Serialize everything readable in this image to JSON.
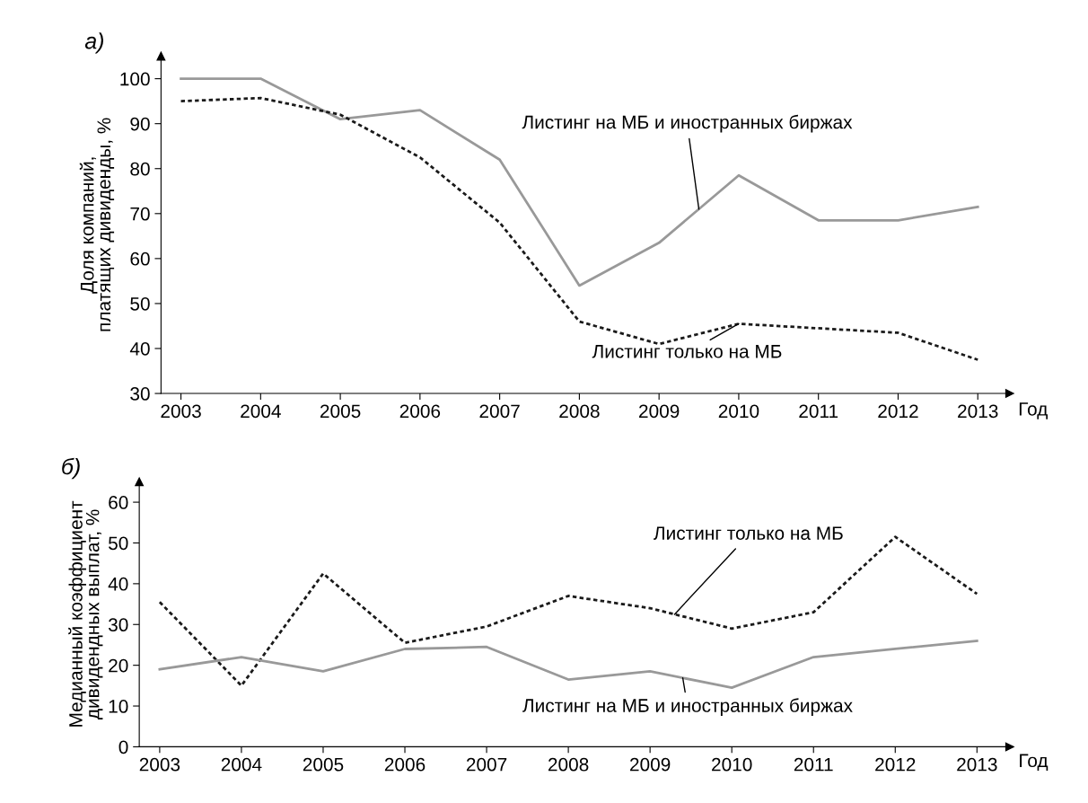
{
  "chart_data": [
    {
      "type": "line",
      "title": "а)",
      "xlabel": "Год",
      "ylabel": "Доля компаний,\nплатящих дивиденды, %",
      "categories": [
        "2003",
        "2004",
        "2005",
        "2006",
        "2007",
        "2008",
        "2009",
        "2010",
        "2011",
        "2012",
        "2013"
      ],
      "series": [
        {
          "name": "Листинг на МБ и иностранных биржах",
          "color": "#999999",
          "line_style": "solid",
          "values": [
            100,
            100,
            91,
            93,
            82,
            54,
            63.5,
            78.5,
            68.5,
            68.5,
            71.5
          ]
        },
        {
          "name": "Листинг только на МБ",
          "color": "#1a1a1a",
          "line_style": "dotted",
          "values": [
            95,
            95.7,
            92,
            82.5,
            68,
            46,
            41,
            45.5,
            44.5,
            43.5,
            37.5
          ]
        }
      ],
      "ylim": [
        30,
        105
      ],
      "yticks": [
        30,
        40,
        50,
        60,
        70,
        80,
        90,
        100
      ],
      "grid": false,
      "legend": false,
      "marker": "none"
    },
    {
      "type": "line",
      "title": "б)",
      "xlabel": "Год",
      "ylabel": "Медианный коэффициент\nдивидендных выплат, %",
      "categories": [
        "2003",
        "2004",
        "2005",
        "2006",
        "2007",
        "2008",
        "2009",
        "2010",
        "2011",
        "2012",
        "2013"
      ],
      "series": [
        {
          "name": "Листинг только на МБ",
          "color": "#1a1a1a",
          "line_style": "dotted",
          "values": [
            35.5,
            15,
            42.5,
            25.5,
            29.5,
            37,
            34,
            29,
            33,
            51.5,
            37.5
          ]
        },
        {
          "name": "Листинг на МБ и иностранных биржах",
          "color": "#999999",
          "line_style": "solid",
          "values": [
            19,
            22,
            18.5,
            24,
            24.5,
            16.5,
            18.5,
            14.5,
            22,
            24,
            26
          ]
        }
      ],
      "ylim": [
        0,
        65
      ],
      "yticks": [
        0,
        10,
        20,
        30,
        40,
        50,
        60
      ],
      "grid": false,
      "legend": false,
      "marker": "none"
    }
  ]
}
